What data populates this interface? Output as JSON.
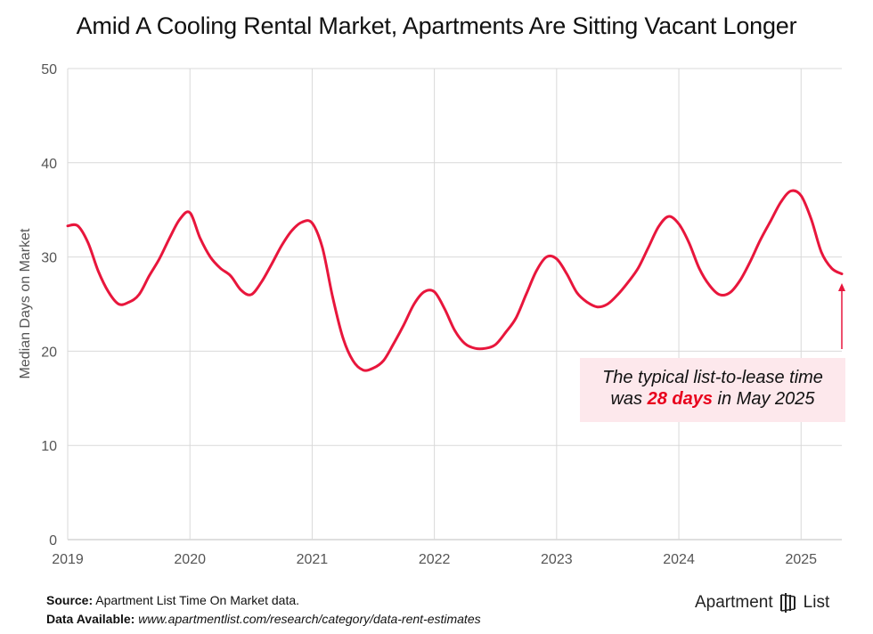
{
  "title": "Amid A Cooling Rental Market, Apartments Are Sitting Vacant Longer",
  "annotation": {
    "line1": "The typical list-to-lease time",
    "prefix": "was ",
    "highlight": "28 days",
    "suffix": " in May 2025"
  },
  "footer": {
    "source_label": "Source:",
    "source_text": "Apartment List Time On Market data.",
    "available_label": "Data Available:",
    "available_text": "www.apartmentlist.com/research/category/data-rent-estimates"
  },
  "logo": {
    "word1": "Apartment",
    "word2": "List"
  },
  "colors": {
    "line": "#e8163c",
    "annotation_bg": "#fde8ec",
    "highlight": "#e8001c",
    "grid": "#d9d9d9"
  },
  "chart_data": {
    "type": "line",
    "title": "Amid A Cooling Rental Market, Apartments Are Sitting Vacant Longer",
    "xlabel": "",
    "ylabel": "Median Days on Market",
    "ylim": [
      0,
      50
    ],
    "yticks": [
      0,
      10,
      20,
      30,
      40,
      50
    ],
    "xticks": [
      "2019",
      "2020",
      "2021",
      "2022",
      "2023",
      "2024",
      "2025"
    ],
    "grid": true,
    "legend": "none",
    "x_unit": "year-month",
    "series": [
      {
        "values": [
          [
            "2019-01",
            33.3
          ],
          [
            "2019-02",
            33.3
          ],
          [
            "2019-03",
            31.5
          ],
          [
            "2019-04",
            28.5
          ],
          [
            "2019-05",
            26.3
          ],
          [
            "2019-06",
            25.0
          ],
          [
            "2019-07",
            25.2
          ],
          [
            "2019-08",
            26.0
          ],
          [
            "2019-09",
            28.0
          ],
          [
            "2019-10",
            29.8
          ],
          [
            "2019-11",
            32.0
          ],
          [
            "2019-12",
            34.0
          ],
          [
            "2020-01",
            34.7
          ],
          [
            "2020-02",
            32.0
          ],
          [
            "2020-03",
            30.0
          ],
          [
            "2020-04",
            28.8
          ],
          [
            "2020-05",
            28.0
          ],
          [
            "2020-06",
            26.5
          ],
          [
            "2020-07",
            26.0
          ],
          [
            "2020-08",
            27.3
          ],
          [
            "2020-09",
            29.2
          ],
          [
            "2020-10",
            31.2
          ],
          [
            "2020-11",
            32.8
          ],
          [
            "2020-12",
            33.7
          ],
          [
            "2021-01",
            33.6
          ],
          [
            "2021-02",
            31.0
          ],
          [
            "2021-03",
            25.8
          ],
          [
            "2021-04",
            21.5
          ],
          [
            "2021-05",
            19.0
          ],
          [
            "2021-06",
            18.0
          ],
          [
            "2021-07",
            18.2
          ],
          [
            "2021-08",
            19.0
          ],
          [
            "2021-09",
            20.8
          ],
          [
            "2021-10",
            22.8
          ],
          [
            "2021-11",
            25.0
          ],
          [
            "2021-12",
            26.3
          ],
          [
            "2022-01",
            26.3
          ],
          [
            "2022-02",
            24.5
          ],
          [
            "2022-03",
            22.2
          ],
          [
            "2022-04",
            20.8
          ],
          [
            "2022-05",
            20.3
          ],
          [
            "2022-06",
            20.3
          ],
          [
            "2022-07",
            20.7
          ],
          [
            "2022-08",
            22.0
          ],
          [
            "2022-09",
            23.5
          ],
          [
            "2022-10",
            26.0
          ],
          [
            "2022-11",
            28.5
          ],
          [
            "2022-12",
            30.0
          ],
          [
            "2023-01",
            29.8
          ],
          [
            "2023-02",
            28.2
          ],
          [
            "2023-03",
            26.2
          ],
          [
            "2023-04",
            25.2
          ],
          [
            "2023-05",
            24.7
          ],
          [
            "2023-06",
            25.0
          ],
          [
            "2023-07",
            26.0
          ],
          [
            "2023-08",
            27.3
          ],
          [
            "2023-09",
            28.8
          ],
          [
            "2023-10",
            31.0
          ],
          [
            "2023-11",
            33.2
          ],
          [
            "2023-12",
            34.3
          ],
          [
            "2024-01",
            33.5
          ],
          [
            "2024-02",
            31.5
          ],
          [
            "2024-03",
            28.8
          ],
          [
            "2024-04",
            27.0
          ],
          [
            "2024-05",
            26.0
          ],
          [
            "2024-06",
            26.2
          ],
          [
            "2024-07",
            27.5
          ],
          [
            "2024-08",
            29.5
          ],
          [
            "2024-09",
            31.8
          ],
          [
            "2024-10",
            33.8
          ],
          [
            "2024-11",
            35.8
          ],
          [
            "2024-12",
            37.0
          ],
          [
            "2025-01",
            36.5
          ],
          [
            "2025-02",
            34.0
          ],
          [
            "2025-03",
            30.5
          ],
          [
            "2025-04",
            28.8
          ],
          [
            "2025-05",
            28.2
          ]
        ]
      }
    ]
  }
}
